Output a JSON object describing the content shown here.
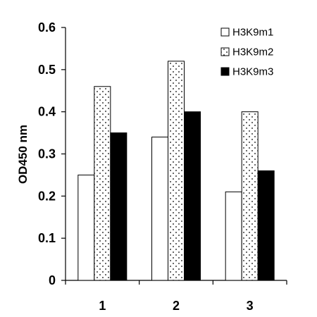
{
  "chart_data": {
    "type": "bar",
    "categories": [
      "1",
      "2",
      "3"
    ],
    "series": [
      {
        "name": "H3K9m1",
        "values": [
          0.25,
          0.34,
          0.21
        ],
        "fill": "white"
      },
      {
        "name": "H3K9m2",
        "values": [
          0.46,
          0.52,
          0.4
        ],
        "fill": "dotted"
      },
      {
        "name": "H3K9m3",
        "values": [
          0.35,
          0.4,
          0.26
        ],
        "fill": "black"
      }
    ],
    "title": "",
    "xlabel": "",
    "ylabel": "OD450 nm",
    "ylim": [
      0,
      0.6
    ],
    "yticks": [
      "0",
      "0.1",
      "0.2",
      "0.3",
      "0.4",
      "0.5",
      "0.6"
    ],
    "grid": false,
    "legend_position": "top-right",
    "colors": {
      "bar_stroke": "#000000",
      "black_fill": "#000000",
      "white_fill": "#ffffff"
    }
  }
}
